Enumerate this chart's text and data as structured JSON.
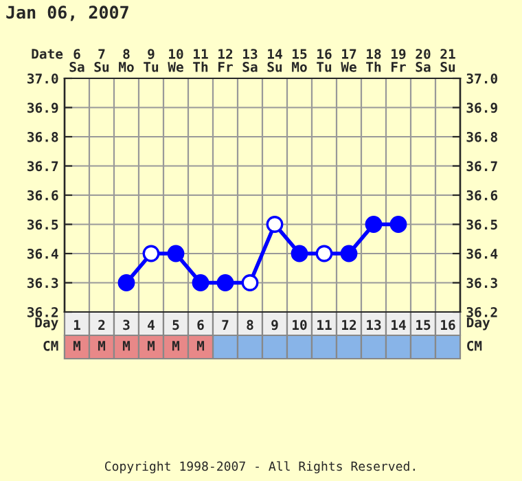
{
  "chart_data": {
    "type": "line",
    "title": "Jan 06, 2007",
    "xlabel": "Day",
    "x2label": "Date",
    "categories": [
      "1",
      "2",
      "3",
      "4",
      "5",
      "6",
      "7",
      "8",
      "9",
      "10",
      "11",
      "12",
      "13",
      "14",
      "15",
      "16"
    ],
    "x2lim": [
      5.5,
      21.5
    ],
    "x2ticks": [
      {
        "value": 6,
        "label": "6\nSa"
      },
      {
        "value": 7,
        "label": "7\nSu"
      },
      {
        "value": 8,
        "label": "8\nMo"
      },
      {
        "value": 9,
        "label": "9\nTu"
      },
      {
        "value": 10,
        "label": "10\nWe"
      },
      {
        "value": 11,
        "label": "11\nTh"
      },
      {
        "value": 12,
        "label": "12\nFr"
      },
      {
        "value": 13,
        "label": "13\nSa"
      },
      {
        "value": 14,
        "label": "14\nSu"
      },
      {
        "value": 15,
        "label": "15\nMo"
      },
      {
        "value": 16,
        "label": "16\nTu"
      },
      {
        "value": 17,
        "label": "17\nWe"
      },
      {
        "value": 18,
        "label": "18\nTh"
      },
      {
        "value": 19,
        "label": "19\nFr"
      },
      {
        "value": 20,
        "label": "20\nSa"
      },
      {
        "value": 21,
        "label": "21\nSu"
      }
    ],
    "series": [
      {
        "color": "#0000ff",
        "values": [
          null,
          null,
          36.3,
          36.4,
          36.4,
          36.3,
          36.3,
          36.3,
          36.5,
          36.4,
          36.4,
          36.4,
          36.5,
          36.5,
          null,
          null
        ],
        "colors": [
          null,
          null,
          "#0000ff",
          "#ffffff",
          "#0000ff",
          "#0000ff",
          "#0000ff",
          "#ffffff",
          "#ffffff",
          "#0000ff",
          "#ffffff",
          "#0000ff",
          "#0000ff",
          "#0000ff",
          null,
          null
        ]
      }
    ],
    "ylim": [
      36.2,
      37.0
    ],
    "yticks": [
      {
        "value": 36.2,
        "label": "36.2"
      },
      {
        "value": 36.3,
        "label": "36.3"
      },
      {
        "value": 36.4,
        "label": "36.4"
      },
      {
        "value": 36.5,
        "label": "36.5"
      },
      {
        "value": 36.6,
        "label": "36.6"
      },
      {
        "value": 36.7,
        "label": "36.7"
      },
      {
        "value": 36.8,
        "label": "36.8"
      },
      {
        "value": 36.9,
        "label": "36.9"
      },
      {
        "value": 37.0,
        "label": "37.0"
      }
    ],
    "y2lim": [
      36.2,
      37.0
    ],
    "y2ticks": [
      {
        "value": 36.2,
        "label": "36.2"
      },
      {
        "value": 36.3,
        "label": "36.3"
      },
      {
        "value": 36.4,
        "label": "36.4"
      },
      {
        "value": 36.5,
        "label": "36.5"
      },
      {
        "value": 36.6,
        "label": "36.6"
      },
      {
        "value": 36.7,
        "label": "36.7"
      },
      {
        "value": 36.8,
        "label": "36.8"
      },
      {
        "value": 36.9,
        "label": "36.9"
      },
      {
        "value": 37.0,
        "label": "37.0"
      }
    ],
    "marker": "circle",
    "line_style": "solid",
    "grid": true,
    "legend": false,
    "annotations": [
      "CM",
      "M",
      "M",
      "M",
      "M",
      "M",
      "M",
      "Copyright 1998-2007 - All Rights Reserved."
    ]
  }
}
